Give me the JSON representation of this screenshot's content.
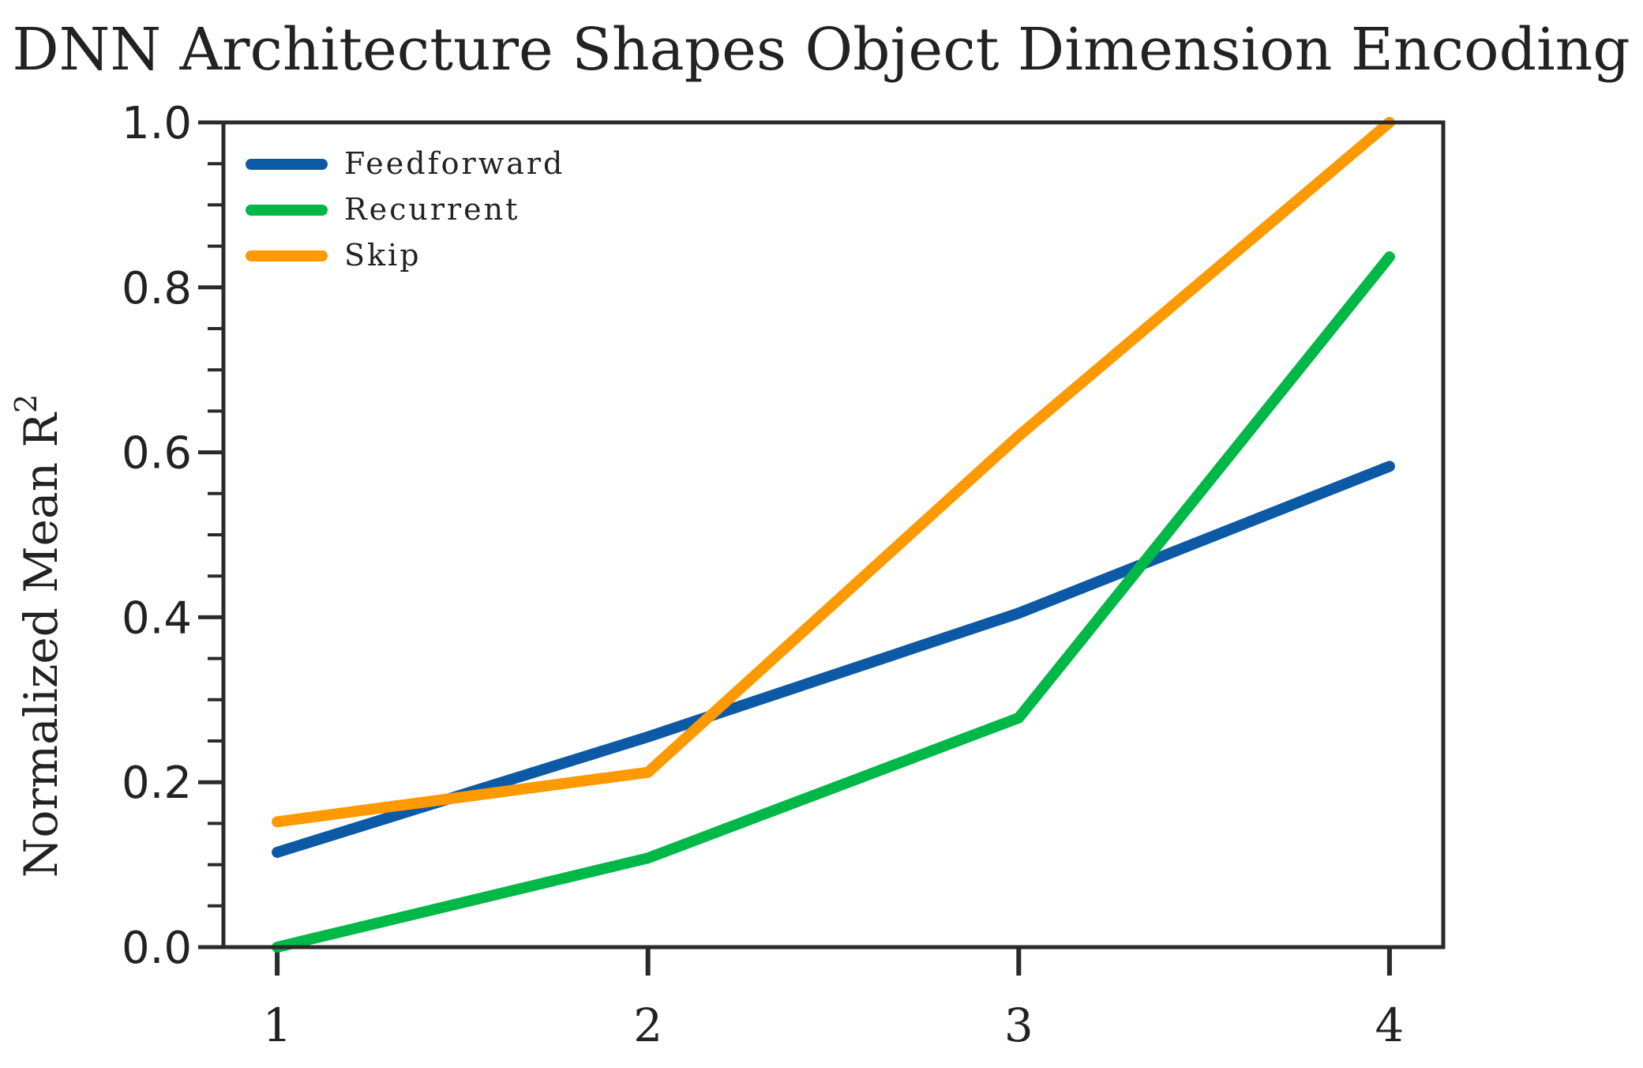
{
  "chart_data": {
    "type": "line",
    "title": "DNN Architecture Shapes Object Dimension Encoding",
    "xlabel": "",
    "ylabel": "Normalized Mean R",
    "ylabel_superscript": "2",
    "x": [
      1,
      2,
      3,
      4
    ],
    "x_tick_labels": [
      "1",
      "2",
      "3",
      "4"
    ],
    "ylim": [
      0,
      1.0
    ],
    "y_tick_labels": [
      "0.0",
      "0.2",
      "0.4",
      "0.6",
      "0.8",
      "1.0"
    ],
    "grid": false,
    "legend_position": "top-left",
    "series": [
      {
        "name": "Feedforward",
        "color": "#0c5aa6",
        "values": [
          0.115,
          0.255,
          0.405,
          0.583
        ]
      },
      {
        "name": "Recurrent",
        "color": "#00b847",
        "values": [
          0.0,
          0.108,
          0.278,
          0.837
        ]
      },
      {
        "name": "Skip",
        "color": "#ff9900",
        "values": [
          0.152,
          0.212,
          0.62,
          1.0
        ]
      }
    ]
  }
}
